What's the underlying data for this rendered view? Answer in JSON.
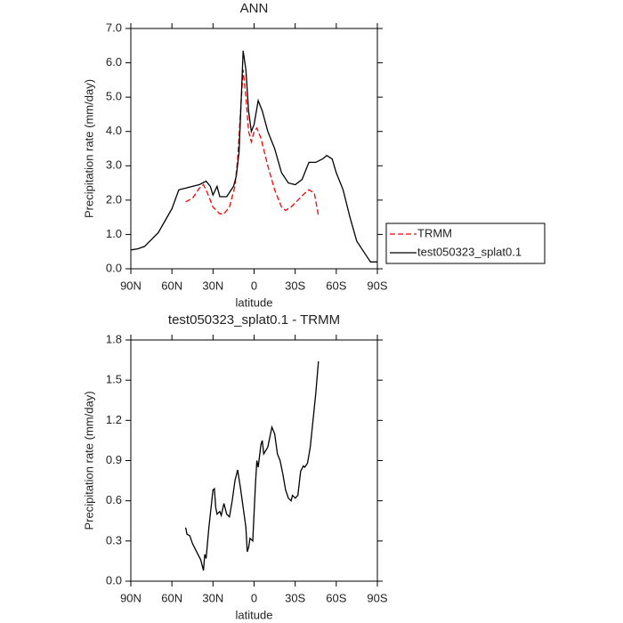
{
  "chart_data": [
    {
      "type": "line",
      "title": "ANN",
      "xlabel": "latitude",
      "ylabel": "Precipitation rate (mm/day)",
      "xlim": [
        90,
        -90
      ],
      "ylim": [
        0,
        7
      ],
      "xticks": [
        {
          "value": 90,
          "label": "90N"
        },
        {
          "value": 60,
          "label": "60N"
        },
        {
          "value": 30,
          "label": "30N"
        },
        0,
        {
          "value": -30,
          "label": "30S"
        },
        {
          "value": -60,
          "label": "60S"
        },
        {
          "value": -90,
          "label": "90S"
        }
      ],
      "yticks": [
        {
          "value": 0,
          "label": "0.0"
        },
        {
          "value": 1,
          "label": "1.0"
        },
        {
          "value": 2,
          "label": "2.0"
        },
        {
          "value": 3,
          "label": "3.0"
        },
        {
          "value": 4,
          "label": "4.0"
        },
        {
          "value": 5,
          "label": "5.0"
        },
        {
          "value": 6,
          "label": "6.0"
        },
        {
          "value": 7,
          "label": "7.0"
        }
      ],
      "legend": "outside-right",
      "series": [
        {
          "name": "TRMM",
          "color": "#ff0000",
          "dash": true,
          "x": [
            50,
            45,
            40,
            37,
            34,
            30,
            25,
            22,
            18,
            14,
            12,
            10,
            8,
            6,
            4,
            2,
            0,
            -2,
            -5,
            -10,
            -15,
            -20,
            -23,
            -27,
            -32,
            -37,
            -40,
            -44,
            -47
          ],
          "values": [
            1.95,
            2.05,
            2.35,
            2.45,
            2.2,
            1.8,
            1.6,
            1.6,
            1.8,
            2.4,
            3.2,
            4.5,
            5.8,
            5.0,
            4.0,
            3.7,
            4.0,
            4.1,
            3.8,
            3.0,
            2.3,
            1.8,
            1.7,
            1.8,
            2.0,
            2.2,
            2.3,
            2.2,
            1.55
          ]
        },
        {
          "name": "test050323_splat0.1",
          "color": "#000000",
          "dash": false,
          "x": [
            90,
            85,
            80,
            75,
            70,
            65,
            60,
            55,
            50,
            45,
            40,
            35,
            32,
            30,
            27,
            25,
            20,
            15,
            13,
            11,
            9,
            8,
            6,
            4,
            2,
            0,
            -3,
            -6,
            -10,
            -15,
            -20,
            -25,
            -30,
            -35,
            -38,
            -40,
            -45,
            -50,
            -53,
            -57,
            -60,
            -65,
            -70,
            -75,
            -80,
            -85,
            -90
          ],
          "values": [
            0.55,
            0.58,
            0.65,
            0.85,
            1.05,
            1.4,
            1.75,
            2.3,
            2.35,
            2.4,
            2.45,
            2.55,
            2.4,
            2.15,
            2.4,
            2.1,
            2.1,
            2.4,
            2.7,
            3.4,
            5.3,
            6.35,
            5.8,
            4.6,
            4.0,
            4.2,
            4.9,
            4.6,
            4.0,
            3.5,
            2.8,
            2.5,
            2.45,
            2.6,
            2.9,
            3.1,
            3.1,
            3.2,
            3.3,
            3.2,
            2.8,
            2.3,
            1.5,
            0.8,
            0.5,
            0.2,
            0.2
          ]
        }
      ]
    },
    {
      "type": "line",
      "title": "test050323_splat0.1 - TRMM",
      "xlabel": "latitude",
      "ylabel": "Precipitation rate (mm/day)",
      "xlim": [
        90,
        -90
      ],
      "ylim": [
        0,
        1.8
      ],
      "xticks": [
        {
          "value": 90,
          "label": "90N"
        },
        {
          "value": 60,
          "label": "60N"
        },
        {
          "value": 30,
          "label": "30N"
        },
        0,
        {
          "value": -30,
          "label": "30S"
        },
        {
          "value": -60,
          "label": "60S"
        },
        {
          "value": -90,
          "label": "90S"
        }
      ],
      "yticks": [
        {
          "value": 0,
          "label": "0.0"
        },
        0.3,
        0.6,
        0.9,
        1.2,
        1.5,
        1.8
      ],
      "series": [
        {
          "color": "#000000",
          "dash": false,
          "x": [
            50,
            49,
            47,
            45,
            42,
            39,
            37,
            36,
            35,
            33,
            30,
            29,
            28,
            27,
            25,
            24,
            22,
            20,
            18,
            16,
            14,
            12,
            10,
            8,
            6,
            5,
            4,
            3,
            1,
            -1,
            -2,
            -3,
            -5,
            -6,
            -7,
            -10,
            -13,
            -15,
            -17,
            -19,
            -21,
            -23,
            -25,
            -27,
            -28,
            -30,
            -32,
            -34,
            -36,
            -37,
            -39,
            -41,
            -43,
            -45,
            -47
          ],
          "values": [
            0.4,
            0.35,
            0.34,
            0.28,
            0.22,
            0.16,
            0.08,
            0.2,
            0.17,
            0.4,
            0.68,
            0.69,
            0.55,
            0.5,
            0.52,
            0.49,
            0.58,
            0.5,
            0.48,
            0.6,
            0.75,
            0.83,
            0.7,
            0.55,
            0.4,
            0.22,
            0.25,
            0.32,
            0.3,
            0.72,
            0.9,
            0.85,
            1.02,
            1.05,
            0.95,
            1.0,
            1.15,
            1.1,
            0.95,
            0.9,
            0.8,
            0.68,
            0.62,
            0.6,
            0.64,
            0.62,
            0.64,
            0.82,
            0.86,
            0.85,
            0.88,
            1.0,
            1.2,
            1.4,
            1.64
          ]
        }
      ]
    }
  ]
}
